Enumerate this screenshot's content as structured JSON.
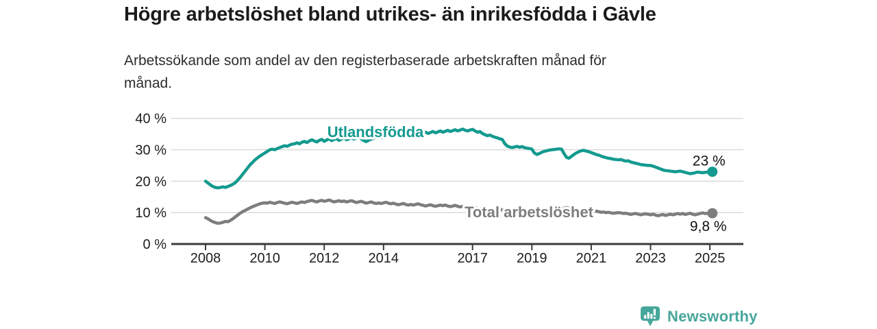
{
  "header": {
    "title": "Högre arbetslöshet bland utrikes- än inrikesfödda i Gävle",
    "subtitle_line1": "Arbetssökande som andel av den registerbaserade arbetskraften månad för",
    "subtitle_line2": "månad."
  },
  "footer": {
    "brand": "Newsworthy",
    "brand_color": "#47a69b"
  },
  "colors": {
    "foreign_born_line": "#149a8f",
    "total_line": "#7d7d80",
    "grid": "#d9d9d9",
    "axis": "#3a3a3a",
    "tick_text": "#1d1d1d",
    "annotation_text": "#111111",
    "background": "#ffffff"
  },
  "chart_data": {
    "type": "line",
    "title": "Högre arbetslöshet bland utrikes- än inrikesfödda i Gävle",
    "subtitle": "Arbetssökande som andel av den registerbaserade arbetskraften månad för månad.",
    "unit": "%",
    "grid": true,
    "x_start_year": 2008,
    "points_per_year": 12,
    "x_end": "2025-02",
    "xlim": [
      2008,
      2025.2
    ],
    "ylim": [
      0,
      40
    ],
    "y_ticks": [
      0,
      10,
      20,
      30,
      40
    ],
    "y_tick_labels": [
      "0 %",
      "10 %",
      "20 %",
      "30 %",
      "40 %"
    ],
    "x_ticks": [
      2008,
      2010,
      2012,
      2014,
      2017,
      2019,
      2021,
      2023,
      2025
    ],
    "x_tick_labels": [
      "2008",
      "2010",
      "2012",
      "2014",
      "2017",
      "2019",
      "2021",
      "2023",
      "2025"
    ],
    "series": [
      {
        "name": "Utlandsfödda",
        "color": "#149a8f",
        "end_label": "23 %",
        "end_value": 23.0,
        "values": [
          20.0,
          19.4,
          18.8,
          18.3,
          18.0,
          17.9,
          18.0,
          18.2,
          18.0,
          18.3,
          18.6,
          19.0,
          19.5,
          20.3,
          21.2,
          22.2,
          23.2,
          24.2,
          25.2,
          26.0,
          26.8,
          27.4,
          28.0,
          28.5,
          29.0,
          29.5,
          30.0,
          30.2,
          30.0,
          30.4,
          30.7,
          31.0,
          31.3,
          31.1,
          31.5,
          31.8,
          31.9,
          32.2,
          31.9,
          32.4,
          32.7,
          32.3,
          32.8,
          33.2,
          32.8,
          32.5,
          33.0,
          33.3,
          32.7,
          33.1,
          33.5,
          32.9,
          33.3,
          33.6,
          33.0,
          33.4,
          33.8,
          33.2,
          33.5,
          33.8,
          33.4,
          33.7,
          34.0,
          33.5,
          32.9,
          32.6,
          33.0,
          33.4,
          33.7,
          34.0,
          34.2,
          33.9,
          33.8,
          34.1,
          34.4,
          34.0,
          34.3,
          34.6,
          34.2,
          34.5,
          34.8,
          34.4,
          34.7,
          35.0,
          34.8,
          35.1,
          35.4,
          35.0,
          35.3,
          35.6,
          35.2,
          35.5,
          35.8,
          35.4,
          35.7,
          36.0,
          35.6,
          35.9,
          36.2,
          35.8,
          36.1,
          36.4,
          36.0,
          36.3,
          36.6,
          36.2,
          36.0,
          36.3,
          36.5,
          36.0,
          35.6,
          35.8,
          35.2,
          34.8,
          34.5,
          34.7,
          34.3,
          34.0,
          33.8,
          33.5,
          33.3,
          32.0,
          31.2,
          30.9,
          30.7,
          30.9,
          31.1,
          30.8,
          31.0,
          30.7,
          30.5,
          30.4,
          30.2,
          29.0,
          28.5,
          28.8,
          29.2,
          29.5,
          29.7,
          29.9,
          30.0,
          30.1,
          30.2,
          30.3,
          30.2,
          28.8,
          27.6,
          27.3,
          27.9,
          28.5,
          29.0,
          29.4,
          29.7,
          29.8,
          29.6,
          29.4,
          29.1,
          28.8,
          28.5,
          28.3,
          28.0,
          27.7,
          27.5,
          27.3,
          27.2,
          27.0,
          26.9,
          26.8,
          26.9,
          26.6,
          26.4,
          26.5,
          26.1,
          25.9,
          25.7,
          25.5,
          25.3,
          25.2,
          25.1,
          25.0,
          25.0,
          24.8,
          24.5,
          24.2,
          23.9,
          23.6,
          23.4,
          23.3,
          23.2,
          23.1,
          23.0,
          23.1,
          23.2,
          23.0,
          22.8,
          22.6,
          22.4,
          22.5,
          22.7,
          22.9,
          22.8,
          22.7,
          22.8,
          22.9,
          23.0,
          23.0
        ]
      },
      {
        "name": "Total arbetslöshet",
        "color": "#7d7d80",
        "end_label": "9,8 %",
        "end_value": 9.8,
        "values": [
          8.4,
          8.0,
          7.5,
          7.1,
          6.8,
          6.6,
          6.7,
          6.9,
          7.2,
          7.1,
          7.5,
          8.0,
          8.6,
          9.2,
          9.8,
          10.3,
          10.7,
          11.1,
          11.5,
          11.9,
          12.2,
          12.5,
          12.8,
          13.0,
          13.1,
          13.0,
          13.3,
          13.1,
          12.9,
          13.2,
          13.4,
          13.2,
          13.0,
          12.8,
          13.1,
          13.3,
          13.1,
          12.9,
          13.2,
          13.4,
          13.2,
          13.5,
          13.7,
          13.9,
          13.6,
          13.4,
          13.7,
          13.9,
          13.6,
          13.8,
          14.0,
          13.7,
          13.4,
          13.6,
          13.8,
          13.5,
          13.7,
          13.4,
          13.6,
          13.8,
          13.5,
          13.2,
          13.4,
          13.6,
          13.3,
          13.0,
          13.2,
          13.4,
          13.1,
          12.9,
          13.1,
          12.9,
          13.1,
          13.3,
          13.0,
          12.8,
          13.0,
          12.7,
          12.5,
          12.7,
          12.9,
          12.6,
          12.4,
          12.6,
          12.4,
          12.6,
          12.8,
          12.5,
          12.3,
          12.1,
          12.3,
          12.5,
          12.2,
          12.0,
          12.2,
          12.4,
          12.2,
          12.4,
          12.1,
          11.9,
          12.1,
          12.3,
          12.0,
          11.8,
          12.0,
          11.7,
          11.5,
          11.7,
          11.5,
          11.7,
          11.4,
          11.2,
          11.4,
          11.6,
          11.3,
          11.1,
          11.3,
          11.0,
          10.8,
          11.0,
          10.8,
          11.0,
          10.7,
          10.5,
          10.7,
          10.4,
          10.6,
          10.8,
          10.5,
          10.3,
          10.5,
          10.7,
          10.5,
          10.3,
          10.5,
          10.7,
          10.4,
          10.2,
          10.4,
          10.6,
          10.8,
          10.6,
          10.8,
          11.0,
          11.2,
          11.4,
          11.6,
          11.4,
          11.2,
          11.4,
          11.1,
          10.9,
          11.1,
          10.8,
          10.6,
          10.8,
          10.6,
          10.4,
          10.5,
          10.3,
          10.1,
          10.2,
          10.0,
          10.1,
          9.9,
          9.8,
          9.9,
          10.0,
          9.9,
          9.7,
          9.8,
          9.6,
          9.4,
          9.6,
          9.7,
          9.5,
          9.3,
          9.5,
          9.6,
          9.5,
          9.3,
          9.5,
          9.2,
          9.0,
          9.2,
          9.4,
          9.1,
          9.3,
          9.5,
          9.3,
          9.5,
          9.7,
          9.5,
          9.7,
          9.4,
          9.6,
          9.8,
          9.5,
          9.3,
          9.5,
          9.7,
          9.9,
          9.7,
          9.8,
          9.7,
          9.8
        ]
      }
    ],
    "legend_position": "inline-on-line"
  }
}
